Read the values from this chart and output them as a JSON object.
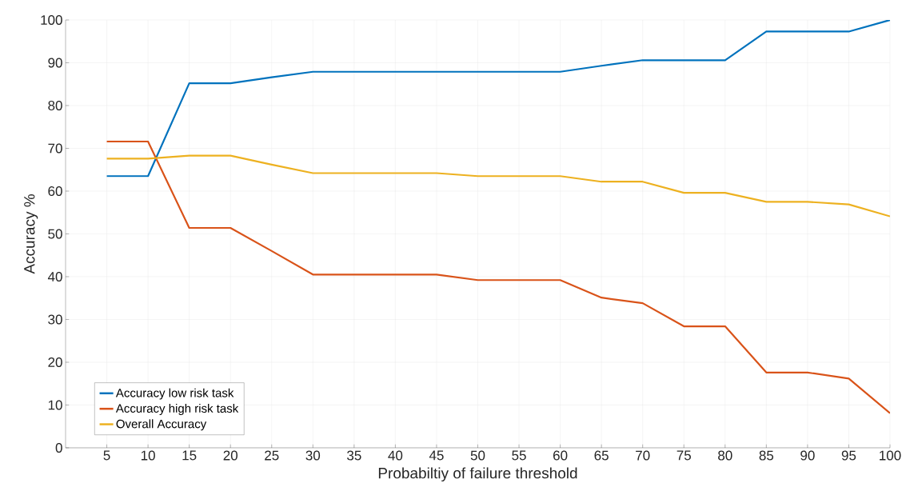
{
  "chart_data": {
    "type": "line",
    "xlabel": "Probabiltiy of failure threshold",
    "ylabel": "Accuracy %",
    "x": [
      5,
      10,
      15,
      20,
      25,
      30,
      35,
      40,
      45,
      50,
      55,
      60,
      65,
      70,
      75,
      80,
      85,
      90,
      95,
      100
    ],
    "series": [
      {
        "name": "Accuracy low risk task",
        "color": "#0072bd",
        "values": [
          63.5,
          63.5,
          85.2,
          85.2,
          86.6,
          87.9,
          87.9,
          87.9,
          87.9,
          87.9,
          87.9,
          87.9,
          89.3,
          90.6,
          90.6,
          90.6,
          97.3,
          97.3,
          97.3,
          100
        ]
      },
      {
        "name": "Accuracy high risk task",
        "color": "#d95319",
        "values": [
          71.6,
          71.6,
          51.4,
          51.4,
          46,
          40.5,
          40.5,
          40.5,
          40.5,
          39.2,
          39.2,
          39.2,
          35.1,
          33.8,
          28.4,
          28.4,
          17.6,
          17.6,
          16.2,
          8.1
        ]
      },
      {
        "name": "Overall Accuracy",
        "color": "#edb120",
        "values": [
          67.6,
          67.6,
          68.3,
          68.3,
          66.2,
          64.2,
          64.2,
          64.2,
          64.2,
          63.5,
          63.5,
          63.5,
          62.2,
          62.2,
          59.6,
          59.6,
          57.5,
          57.5,
          56.9,
          54.1
        ]
      }
    ],
    "xlim": [
      0,
      100
    ],
    "xticks": [
      5,
      10,
      15,
      20,
      25,
      30,
      35,
      40,
      45,
      50,
      55,
      60,
      65,
      70,
      75,
      80,
      85,
      90,
      95,
      100
    ],
    "ylim": [
      0,
      100
    ],
    "yticks": [
      0,
      10,
      20,
      30,
      40,
      50,
      60,
      70,
      80,
      90,
      100
    ],
    "grid": true,
    "legend": "bottom left",
    "marker": "none",
    "line_style": "solid"
  }
}
